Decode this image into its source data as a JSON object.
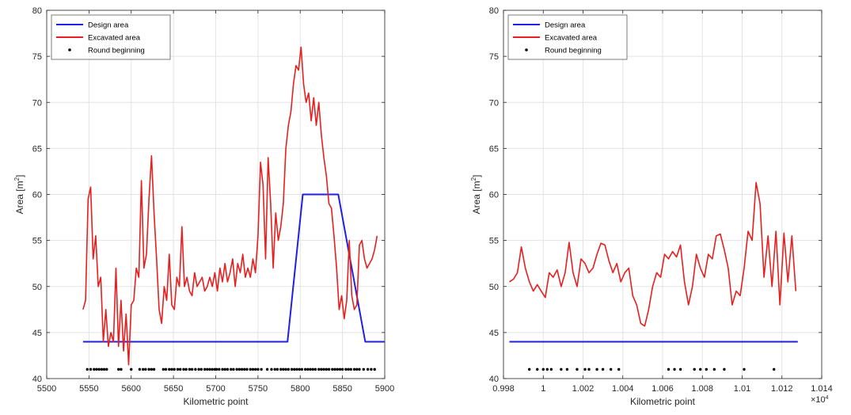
{
  "chart_data": [
    {
      "type": "line",
      "xlabel": "Kilometric point",
      "ylabel_main": "Area [m",
      "ylabel_sup": "2",
      "ylabel_end": "]",
      "xlim": [
        5500,
        5900
      ],
      "ylim": [
        40,
        80
      ],
      "xticks": [
        5500,
        5550,
        5600,
        5650,
        5700,
        5750,
        5800,
        5850,
        5900
      ],
      "xtick_labels": [
        "5500",
        "5550",
        "5600",
        "5650",
        "5700",
        "5750",
        "5800",
        "5850",
        "5900"
      ],
      "yticks": [
        40,
        45,
        50,
        55,
        60,
        65,
        70,
        75,
        80
      ],
      "ytick_labels": [
        "40",
        "45",
        "50",
        "55",
        "60",
        "65",
        "70",
        "75",
        "80"
      ],
      "exponent_label": "",
      "grid": true,
      "legend_position": "top-left",
      "series": [
        {
          "name": "Design area",
          "color": "#1f1fe6",
          "x": [
            5543,
            5785,
            5803,
            5845,
            5877,
            5900
          ],
          "y": [
            44,
            44,
            60,
            60,
            44,
            44
          ]
        },
        {
          "name": "Excavated area",
          "color": "#e61f1f",
          "x": [
            5543,
            5546,
            5549,
            5552,
            5555,
            5558,
            5561,
            5564,
            5567,
            5570,
            5573,
            5576,
            5579,
            5582,
            5585,
            5588,
            5591,
            5594,
            5597,
            5600,
            5603,
            5606,
            5609,
            5612,
            5615,
            5618,
            5621,
            5624,
            5627,
            5630,
            5633,
            5636,
            5639,
            5642,
            5645,
            5648,
            5651,
            5654,
            5657,
            5660,
            5663,
            5666,
            5669,
            5672,
            5675,
            5678,
            5681,
            5684,
            5687,
            5690,
            5693,
            5696,
            5699,
            5702,
            5705,
            5708,
            5711,
            5714,
            5717,
            5720,
            5723,
            5726,
            5729,
            5732,
            5735,
            5738,
            5741,
            5744,
            5747,
            5750,
            5753,
            5756,
            5759,
            5762,
            5765,
            5768,
            5771,
            5774,
            5777,
            5780,
            5783,
            5786,
            5789,
            5792,
            5795,
            5798,
            5801,
            5804,
            5807,
            5810,
            5813,
            5816,
            5819,
            5822,
            5825,
            5828,
            5831,
            5834,
            5837,
            5840,
            5843,
            5846,
            5849,
            5852,
            5855,
            5858,
            5861,
            5864,
            5867,
            5870,
            5873,
            5876,
            5879,
            5882,
            5885,
            5888,
            5891
          ],
          "y": [
            47.5,
            48.5,
            59.5,
            60.8,
            53,
            55.5,
            50,
            51,
            44,
            47.5,
            43.5,
            45,
            44,
            52,
            43.5,
            48.5,
            43,
            47,
            41.5,
            48,
            48.5,
            52,
            51,
            61.5,
            52,
            53.5,
            59.5,
            64.2,
            58,
            53,
            47.5,
            46,
            50,
            48.5,
            53.5,
            48,
            47.5,
            51,
            50,
            56.5,
            50,
            51,
            49.5,
            49,
            51.5,
            50,
            50.5,
            51,
            49.5,
            50,
            51,
            50,
            51.5,
            49.5,
            52,
            50.5,
            52.5,
            50.5,
            51.5,
            53,
            50,
            52.5,
            51.5,
            53.5,
            51,
            52,
            51,
            53,
            51.5,
            55.5,
            63.5,
            61,
            53,
            64,
            59,
            52,
            58,
            55,
            56.5,
            59,
            65,
            67.5,
            69,
            72,
            74,
            73.5,
            76,
            72,
            70,
            71,
            68,
            70.5,
            67.5,
            70,
            66.5,
            64,
            62,
            59,
            58.5,
            55.5,
            52,
            47.5,
            49,
            46.5,
            48.5,
            55,
            49,
            47.5,
            48,
            54.5,
            55,
            53,
            52,
            52.5,
            53,
            54,
            55.5
          ]
        },
        {
          "name": "Round beginning",
          "color": "#000000",
          "marker": "dot",
          "y_level": 41,
          "x": [
            5548,
            5552,
            5556,
            5559,
            5562,
            5565,
            5568,
            5571,
            5585,
            5588,
            5600,
            5610,
            5614,
            5617,
            5621,
            5624,
            5627,
            5638,
            5641,
            5645,
            5648,
            5651,
            5655,
            5658,
            5662,
            5665,
            5669,
            5672,
            5676,
            5680,
            5683,
            5687,
            5690,
            5693,
            5696,
            5699,
            5701,
            5704,
            5708,
            5711,
            5714,
            5718,
            5721,
            5725,
            5728,
            5731,
            5734,
            5737,
            5741,
            5744,
            5747,
            5750,
            5754,
            5761,
            5766,
            5770,
            5773,
            5777,
            5780,
            5783,
            5786,
            5790,
            5793,
            5796,
            5799,
            5802,
            5806,
            5809,
            5812,
            5815,
            5818,
            5822,
            5825,
            5828,
            5831,
            5834,
            5838,
            5841,
            5844,
            5847,
            5850,
            5854,
            5857,
            5860,
            5864,
            5867,
            5870,
            5875,
            5880,
            5884,
            5888
          ]
        }
      ]
    },
    {
      "type": "line",
      "xlabel": "Kilometric point",
      "ylabel_main": "Area [m",
      "ylabel_sup": "2",
      "ylabel_end": "]",
      "xlim": [
        0.998,
        1.014
      ],
      "ylim": [
        40,
        80
      ],
      "xticks": [
        0.998,
        1,
        1.002,
        1.004,
        1.006,
        1.008,
        1.01,
        1.012,
        1.014
      ],
      "xtick_labels": [
        "0.998",
        "1",
        "1.002",
        "1.004",
        "1.006",
        "1.008",
        "1.01",
        "1.012",
        "1.014"
      ],
      "yticks": [
        40,
        45,
        50,
        55,
        60,
        65,
        70,
        75,
        80
      ],
      "ytick_labels": [
        "40",
        "45",
        "50",
        "55",
        "60",
        "65",
        "70",
        "75",
        "80"
      ],
      "exponent_label": "×10",
      "exponent_sup": "4",
      "grid": true,
      "legend_position": "top-left",
      "series": [
        {
          "name": "Design area",
          "color": "#1f1fe6",
          "x": [
            0.9983,
            1.0128
          ],
          "y": [
            44,
            44
          ]
        },
        {
          "name": "Excavated area",
          "color": "#e61f1f",
          "x": [
            0.9983,
            0.9985,
            0.9987,
            0.9989,
            0.9991,
            0.9993,
            0.9995,
            0.9997,
            0.9999,
            1.0001,
            1.0003,
            1.0005,
            1.0007,
            1.0009,
            1.0011,
            1.0013,
            1.0015,
            1.0017,
            1.0019,
            1.0021,
            1.0023,
            1.0025,
            1.0027,
            1.0029,
            1.0031,
            1.0033,
            1.0035,
            1.0037,
            1.0039,
            1.0041,
            1.0043,
            1.0045,
            1.0047,
            1.0049,
            1.0051,
            1.0053,
            1.0055,
            1.0057,
            1.0059,
            1.0061,
            1.0063,
            1.0065,
            1.0067,
            1.0069,
            1.0071,
            1.0073,
            1.0075,
            1.0077,
            1.0079,
            1.0081,
            1.0083,
            1.0085,
            1.0087,
            1.0089,
            1.0091,
            1.0093,
            1.0095,
            1.0097,
            1.0099,
            1.0101,
            1.0103,
            1.0105,
            1.0107,
            1.0109,
            1.0111,
            1.0113,
            1.0115,
            1.0117,
            1.0119,
            1.0121,
            1.0123,
            1.0125,
            1.0127
          ],
          "y": [
            50.5,
            50.8,
            51.5,
            54.3,
            52,
            50.5,
            49.5,
            50.2,
            49.5,
            48.8,
            51.5,
            51,
            51.8,
            50,
            51.5,
            54.8,
            51.5,
            50,
            53,
            52.5,
            51.5,
            52,
            53.5,
            54.7,
            54.5,
            52.8,
            51.5,
            52.5,
            50.5,
            51.5,
            52,
            49,
            48,
            46,
            45.7,
            47.5,
            50,
            51.5,
            51,
            53.5,
            53,
            53.8,
            53.2,
            54.5,
            50.5,
            48,
            50,
            53.5,
            52,
            51,
            53.5,
            53,
            55.5,
            55.7,
            54,
            52,
            48,
            49.5,
            49,
            52,
            56,
            55,
            61.3,
            59,
            51,
            55.5,
            50,
            56,
            48,
            55.8,
            50.5,
            55.5,
            49.5
          ]
        },
        {
          "name": "Round beginning",
          "color": "#000000",
          "marker": "dot",
          "y_level": 41,
          "x": [
            0.9993,
            0.9997,
            1.0,
            1.0002,
            1.0004,
            1.0009,
            1.0012,
            1.0017,
            1.0021,
            1.0023,
            1.0027,
            1.003,
            1.0034,
            1.0038,
            1.0063,
            1.0066,
            1.0069,
            1.0076,
            1.0079,
            1.0082,
            1.0086,
            1.0091,
            1.0101,
            1.0116
          ]
        }
      ]
    }
  ]
}
